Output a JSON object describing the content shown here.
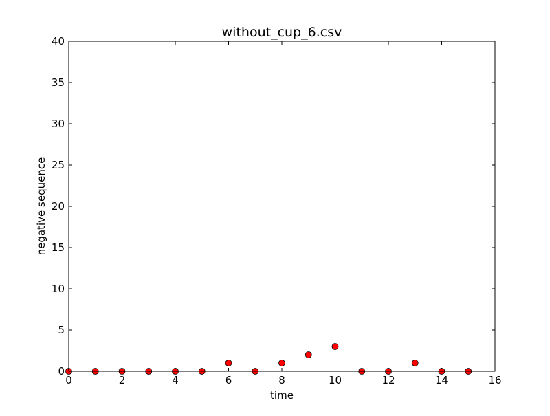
{
  "chart_data": {
    "type": "scatter",
    "title": "without_cup_6.csv",
    "xlabel": "time",
    "ylabel": "negative sequence",
    "xlim": [
      0,
      16
    ],
    "ylim": [
      0,
      40
    ],
    "xticks": [
      0,
      2,
      4,
      6,
      8,
      10,
      12,
      14,
      16
    ],
    "yticks": [
      0,
      5,
      10,
      15,
      20,
      25,
      30,
      35,
      40
    ],
    "grid": false,
    "legend": "none",
    "series": [
      {
        "color": "#ff0000",
        "marker": "circle",
        "x": [
          0,
          1,
          2,
          3,
          4,
          5,
          6,
          7,
          8,
          9,
          10,
          11,
          12,
          13,
          14,
          15
        ],
        "y": [
          0,
          0,
          0,
          0,
          0,
          0,
          1,
          0,
          1,
          2,
          3,
          0,
          0,
          1,
          0,
          0
        ]
      }
    ]
  }
}
